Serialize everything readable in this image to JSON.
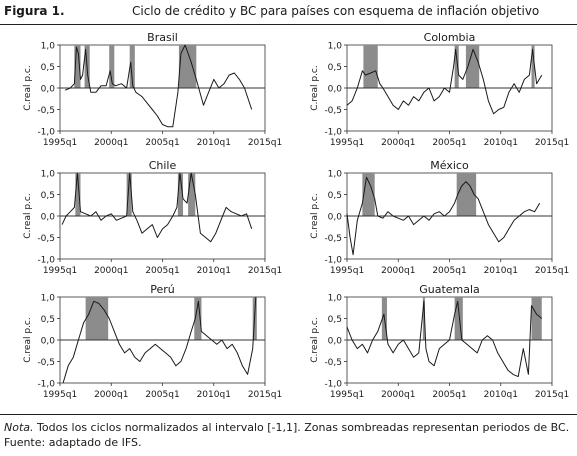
{
  "figure": {
    "label": "Figura 1.",
    "title": "Ciclo de crédito y BC para países con esquema de inflación objetivo",
    "note_label": "Nota.",
    "note_text": "Todos los ciclos normalizados al intervalo [-1,1]. Zonas sombreadas representan periodos de BC.",
    "source": "Fuente: adaptado de IFS."
  },
  "chart_data": [
    {
      "type": "line",
      "title": "Brasil",
      "ylabel": "C.real p.c.",
      "xlim": [
        1995,
        2015
      ],
      "ylim": [
        -1,
        1
      ],
      "xticks": [
        1995,
        2000,
        2005,
        2010,
        2015
      ],
      "xtick_labels": [
        "1995q1",
        "2000q1",
        "2005q1",
        "2010q1",
        "2015q1"
      ],
      "yticks": [
        1,
        0.5,
        0,
        -0.5,
        -1
      ],
      "ytick_labels": [
        "1,0",
        "0,5",
        "0,0",
        "-0,5",
        "-1,0"
      ],
      "shaded_periods": [
        [
          1996.4,
          1997.0
        ],
        [
          1997.4,
          1997.9
        ],
        [
          1999.8,
          2000.3
        ],
        [
          2001.8,
          2002.3
        ],
        [
          2006.6,
          2008.3
        ]
      ],
      "x": [
        1995.5,
        1996.0,
        1996.4,
        1996.6,
        1996.8,
        1997.0,
        1997.2,
        1997.5,
        1997.7,
        1998.0,
        1998.5,
        1999.0,
        1999.5,
        1999.9,
        2000.1,
        2000.4,
        2001.0,
        2001.5,
        2001.9,
        2002.1,
        2002.4,
        2003.0,
        2003.5,
        2004.0,
        2004.5,
        2005.0,
        2005.5,
        2006.0,
        2006.5,
        2006.8,
        2007.2,
        2007.8,
        2008.3,
        2009.0,
        2009.5,
        2010.0,
        2010.5,
        2011.0,
        2011.5,
        2012.0,
        2012.5,
        2013.0,
        2013.7
      ],
      "y": [
        -0.05,
        0.0,
        0.1,
        0.95,
        0.8,
        0.2,
        0.3,
        0.9,
        0.3,
        -0.1,
        -0.1,
        0.05,
        0.05,
        0.4,
        0.1,
        0.05,
        0.1,
        0.0,
        0.6,
        0.05,
        -0.1,
        -0.2,
        -0.35,
        -0.5,
        -0.65,
        -0.85,
        -0.9,
        -0.9,
        -0.1,
        0.8,
        1.0,
        0.6,
        0.2,
        -0.4,
        -0.1,
        0.2,
        0.0,
        0.1,
        0.3,
        0.35,
        0.2,
        0.0,
        -0.5
      ]
    },
    {
      "type": "line",
      "title": "Colombia",
      "ylabel": "C.real p.c.",
      "xlim": [
        1995,
        2015
      ],
      "ylim": [
        -1,
        1
      ],
      "xticks": [
        1995,
        2000,
        2005,
        2010,
        2015
      ],
      "xtick_labels": [
        "1995q1",
        "2000q1",
        "2005q1",
        "2010q1",
        "2015q1"
      ],
      "yticks": [
        1,
        0.5,
        0,
        -0.5,
        -1
      ],
      "ytick_labels": [
        "1,0",
        "0,5",
        "0,0",
        "-0,5",
        "-1,0"
      ],
      "shaded_periods": [
        [
          1996.6,
          1998.0
        ],
        [
          2005.5,
          2005.9
        ],
        [
          2006.6,
          2007.9
        ],
        [
          2013.0,
          2013.3
        ]
      ],
      "x": [
        1995.0,
        1995.5,
        1996.0,
        1996.5,
        1996.8,
        1997.3,
        1997.8,
        1998.2,
        1998.5,
        1999.0,
        1999.5,
        2000.0,
        2000.5,
        2001.0,
        2001.5,
        2002.0,
        2002.5,
        2003.0,
        2003.5,
        2004.0,
        2004.5,
        2005.0,
        2005.4,
        2005.6,
        2005.9,
        2006.3,
        2006.8,
        2007.3,
        2007.8,
        2008.3,
        2008.8,
        2009.3,
        2009.8,
        2010.3,
        2010.8,
        2011.3,
        2011.8,
        2012.3,
        2012.8,
        2013.1,
        2013.5,
        2014.0
      ],
      "y": [
        -0.4,
        -0.3,
        0.0,
        0.4,
        0.3,
        0.35,
        0.4,
        0.1,
        0.0,
        -0.2,
        -0.4,
        -0.5,
        -0.3,
        -0.4,
        -0.2,
        -0.3,
        -0.1,
        0.0,
        -0.3,
        -0.2,
        0.0,
        -0.1,
        0.5,
        0.9,
        0.3,
        0.2,
        0.5,
        0.9,
        0.6,
        0.2,
        -0.3,
        -0.6,
        -0.5,
        -0.45,
        -0.1,
        0.1,
        -0.1,
        0.2,
        0.3,
        0.9,
        0.1,
        0.3
      ]
    },
    {
      "type": "line",
      "title": "Chile",
      "ylabel": "C.real p.c.",
      "xlim": [
        1995,
        2015
      ],
      "ylim": [
        -1,
        1
      ],
      "xticks": [
        1995,
        2000,
        2005,
        2010,
        2015
      ],
      "xtick_labels": [
        "1995q1",
        "2000q1",
        "2005q1",
        "2010q1",
        "2015q1"
      ],
      "yticks": [
        1,
        0.5,
        0,
        -0.5,
        -1
      ],
      "ytick_labels": [
        "1,0",
        "0,5",
        "0,0",
        "-0,5",
        "-1,0"
      ],
      "shaded_periods": [
        [
          1996.5,
          1997.0
        ],
        [
          2001.5,
          2002.0
        ],
        [
          2006.5,
          2007.0
        ],
        [
          2007.5,
          2008.2
        ]
      ],
      "x": [
        1995.2,
        1995.6,
        1996.0,
        1996.4,
        1996.7,
        1997.0,
        1997.5,
        1998.0,
        1998.5,
        1999.0,
        1999.5,
        2000.0,
        2000.5,
        2001.0,
        2001.5,
        2001.8,
        2002.1,
        2002.5,
        2003.0,
        2003.5,
        2004.0,
        2004.5,
        2005.0,
        2005.5,
        2006.0,
        2006.4,
        2006.7,
        2007.0,
        2007.4,
        2007.8,
        2008.2,
        2008.7,
        2009.2,
        2009.7,
        2010.2,
        2010.7,
        2011.2,
        2011.7,
        2012.2,
        2012.7,
        2013.2,
        2013.7
      ],
      "y": [
        -0.2,
        0.0,
        0.1,
        0.2,
        1.0,
        0.1,
        0.05,
        0.0,
        0.1,
        -0.1,
        0.0,
        0.05,
        -0.1,
        -0.05,
        0.0,
        1.0,
        0.1,
        -0.1,
        -0.4,
        -0.3,
        -0.2,
        -0.5,
        -0.3,
        -0.2,
        0.0,
        0.2,
        1.0,
        0.4,
        0.3,
        1.0,
        0.5,
        -0.4,
        -0.5,
        -0.6,
        -0.4,
        -0.1,
        0.2,
        0.1,
        0.05,
        0.0,
        0.05,
        -0.3
      ]
    },
    {
      "type": "line",
      "title": "México",
      "ylabel": "C.real p.c.",
      "xlim": [
        1995,
        2015
      ],
      "ylim": [
        -1,
        1
      ],
      "xticks": [
        1995,
        2000,
        2005,
        2010,
        2015
      ],
      "xtick_labels": [
        "1995q1",
        "2000q1",
        "2005q1",
        "2010q1",
        "2015q1"
      ],
      "yticks": [
        1,
        0.5,
        0,
        -0.5,
        -1
      ],
      "ytick_labels": [
        "1,0",
        "0,5",
        "0,0",
        "-0,5",
        "-1,0"
      ],
      "shaded_periods": [
        [
          1996.5,
          1997.7
        ],
        [
          2005.7,
          2007.6
        ]
      ],
      "x": [
        1995.0,
        1995.3,
        1995.6,
        1996.0,
        1996.5,
        1996.9,
        1997.3,
        1997.7,
        1998.0,
        1998.5,
        1999.0,
        1999.5,
        2000.0,
        2000.5,
        2001.0,
        2001.5,
        2002.0,
        2002.5,
        2003.0,
        2003.5,
        2004.0,
        2004.5,
        2005.0,
        2005.5,
        2005.8,
        2006.2,
        2006.6,
        2007.0,
        2007.4,
        2007.8,
        2008.3,
        2008.8,
        2009.3,
        2009.8,
        2010.3,
        2010.8,
        2011.3,
        2011.8,
        2012.3,
        2012.8,
        2013.3,
        2013.8
      ],
      "y": [
        0.05,
        -0.5,
        -0.9,
        -0.1,
        0.3,
        0.9,
        0.7,
        0.4,
        0.0,
        -0.05,
        0.1,
        0.0,
        -0.05,
        -0.1,
        0.0,
        -0.2,
        -0.1,
        0.0,
        -0.1,
        0.05,
        0.1,
        0.0,
        0.1,
        0.3,
        0.5,
        0.7,
        0.8,
        0.7,
        0.5,
        0.4,
        0.1,
        -0.2,
        -0.4,
        -0.6,
        -0.5,
        -0.3,
        -0.1,
        0.0,
        0.1,
        0.15,
        0.1,
        0.3
      ]
    },
    {
      "type": "line",
      "title": "Perú",
      "ylabel": "C.real p.c.",
      "xlim": [
        1995,
        2015
      ],
      "ylim": [
        -1,
        1
      ],
      "xticks": [
        1995,
        2000,
        2005,
        2010,
        2015
      ],
      "xtick_labels": [
        "1995q1",
        "2000q1",
        "2005q1",
        "2010q1",
        "2015q1"
      ],
      "yticks": [
        1,
        0.5,
        0,
        -0.5,
        -1
      ],
      "ytick_labels": [
        "1,0",
        "0,5",
        "0,0",
        "-0,5",
        "-1,0"
      ],
      "shaded_periods": [
        [
          1997.5,
          1999.7
        ],
        [
          2008.1,
          2008.8
        ],
        [
          2013.8,
          2014.2
        ]
      ],
      "x": [
        1995.3,
        1995.8,
        1996.3,
        1996.8,
        1997.3,
        1997.8,
        1998.3,
        1998.8,
        1999.3,
        1999.8,
        2000.3,
        2000.8,
        2001.3,
        2001.8,
        2002.3,
        2002.8,
        2003.3,
        2003.8,
        2004.3,
        2004.8,
        2005.3,
        2005.8,
        2006.3,
        2006.8,
        2007.3,
        2007.8,
        2008.2,
        2008.5,
        2008.8,
        2009.3,
        2009.8,
        2010.3,
        2010.8,
        2011.3,
        2011.8,
        2012.3,
        2012.8,
        2013.3,
        2013.8,
        2014.1
      ],
      "y": [
        -1.0,
        -0.6,
        -0.4,
        0.0,
        0.4,
        0.6,
        0.9,
        0.85,
        0.7,
        0.5,
        0.2,
        -0.1,
        -0.3,
        -0.2,
        -0.4,
        -0.5,
        -0.3,
        -0.2,
        -0.1,
        -0.2,
        -0.3,
        -0.4,
        -0.6,
        -0.5,
        -0.2,
        0.2,
        0.5,
        0.9,
        0.2,
        0.1,
        0.0,
        -0.1,
        0.0,
        -0.2,
        -0.1,
        -0.3,
        -0.6,
        -0.8,
        -0.2,
        1.0
      ]
    },
    {
      "type": "line",
      "title": "Guatemala",
      "ylabel": "C.real p.c.",
      "xlim": [
        1995,
        2015
      ],
      "ylim": [
        -1,
        1
      ],
      "xticks": [
        1995,
        2000,
        2005,
        2010,
        2015
      ],
      "xtick_labels": [
        "1995q1",
        "2000q1",
        "2005q1",
        "2010q1",
        "2015q1"
      ],
      "yticks": [
        1,
        0.5,
        0,
        -0.5,
        -1
      ],
      "ytick_labels": [
        "1,0",
        "0,5",
        "0,0",
        "-0,5",
        "-1,0"
      ],
      "shaded_periods": [
        [
          1998.4,
          1998.9
        ],
        [
          2002.4,
          2002.6
        ],
        [
          2005.5,
          2006.3
        ],
        [
          2013.0,
          2014.0
        ]
      ],
      "x": [
        1995.0,
        1995.5,
        1996.0,
        1996.5,
        1997.0,
        1997.5,
        1998.0,
        1998.6,
        1999.0,
        1999.5,
        2000.0,
        2000.5,
        2001.0,
        2001.5,
        2002.0,
        2002.5,
        2002.7,
        2003.0,
        2003.5,
        2004.0,
        2004.5,
        2005.0,
        2005.5,
        2005.8,
        2006.2,
        2006.7,
        2007.2,
        2007.7,
        2008.2,
        2008.7,
        2009.2,
        2009.7,
        2010.2,
        2010.7,
        2011.2,
        2011.7,
        2012.2,
        2012.7,
        2013.0,
        2013.5,
        2014.0
      ],
      "y": [
        0.3,
        0.0,
        -0.2,
        -0.1,
        -0.3,
        0.0,
        0.2,
        0.6,
        -0.1,
        -0.3,
        -0.1,
        0.0,
        -0.2,
        -0.4,
        -0.3,
        0.9,
        -0.2,
        -0.5,
        -0.6,
        -0.2,
        -0.1,
        0.0,
        0.6,
        0.9,
        0.0,
        -0.1,
        -0.2,
        -0.3,
        0.0,
        0.1,
        0.0,
        -0.3,
        -0.5,
        -0.7,
        -0.8,
        -0.85,
        -0.2,
        -0.8,
        0.8,
        0.6,
        0.5
      ]
    }
  ]
}
